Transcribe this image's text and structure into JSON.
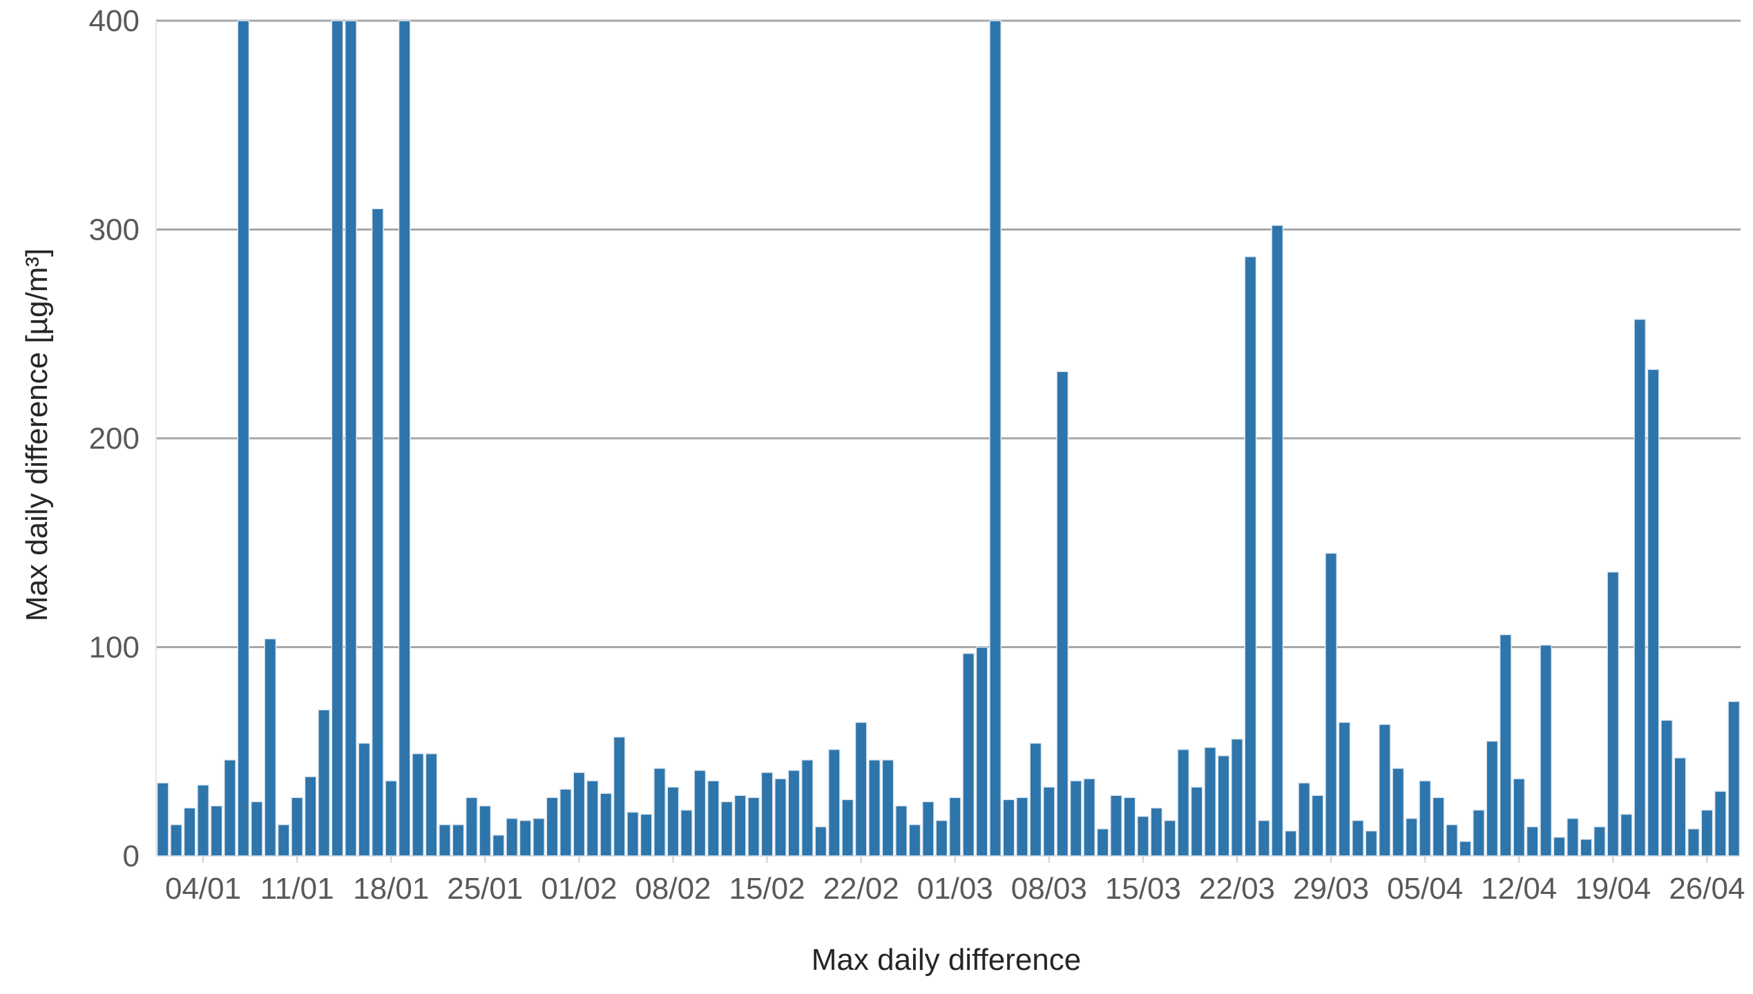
{
  "chart_data": {
    "type": "bar",
    "xlabel": "Max daily difference",
    "ylabel": "Max daily difference  [µg/m³]",
    "ylim": [
      0,
      400
    ],
    "y_ticks": [
      0,
      100,
      200,
      300,
      400
    ],
    "grid": "horizontal",
    "bar_color": "#2e75ab",
    "x_ticks": [
      {
        "label": "04/01",
        "day_index": 3
      },
      {
        "label": "11/01",
        "day_index": 10
      },
      {
        "label": "18/01",
        "day_index": 17
      },
      {
        "label": "25/01",
        "day_index": 24
      },
      {
        "label": "01/02",
        "day_index": 31
      },
      {
        "label": "08/02",
        "day_index": 38
      },
      {
        "label": "15/02",
        "day_index": 45
      },
      {
        "label": "22/02",
        "day_index": 52
      },
      {
        "label": "01/03",
        "day_index": 59
      },
      {
        "label": "08/03",
        "day_index": 66
      },
      {
        "label": "15/03",
        "day_index": 73
      },
      {
        "label": "22/03",
        "day_index": 80
      },
      {
        "label": "29/03",
        "day_index": 87
      },
      {
        "label": "05/04",
        "day_index": 94
      },
      {
        "label": "12/04",
        "day_index": 101
      },
      {
        "label": "19/04",
        "day_index": 108
      },
      {
        "label": "26/04",
        "day_index": 115
      }
    ],
    "values": [
      35,
      15,
      23,
      34,
      24,
      46,
      400,
      26,
      104,
      15,
      28,
      38,
      70,
      400,
      400,
      54,
      310,
      36,
      400,
      49,
      49,
      15,
      15,
      28,
      24,
      10,
      18,
      17,
      18,
      28,
      32,
      40,
      36,
      30,
      57,
      21,
      20,
      42,
      33,
      22,
      41,
      36,
      26,
      29,
      28,
      40,
      37,
      41,
      46,
      14,
      51,
      27,
      64,
      46,
      46,
      24,
      15,
      26,
      17,
      28,
      97,
      100,
      400,
      27,
      28,
      54,
      33,
      232,
      36,
      37,
      13,
      29,
      28,
      19,
      23,
      17,
      51,
      33,
      52,
      48,
      56,
      287,
      17,
      302,
      12,
      35,
      29,
      145,
      64,
      17,
      12,
      63,
      42,
      18,
      36,
      28,
      15,
      7,
      22,
      55,
      106,
      37,
      14,
      101,
      9,
      18,
      8,
      14,
      136,
      20,
      257,
      233,
      65,
      47,
      13,
      22,
      31,
      74
    ]
  }
}
